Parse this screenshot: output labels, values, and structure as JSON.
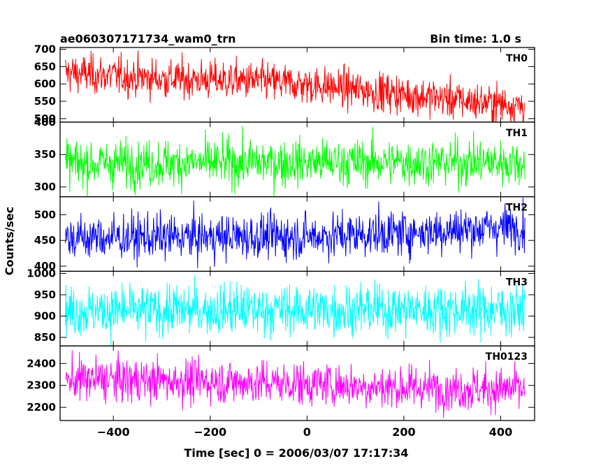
{
  "header": {
    "title": "ae060307171734_wam0_trn",
    "bin_time": "Bin time: 1.0 s"
  },
  "chart_data": {
    "type": "line",
    "title": "ae060307171734_wam0_trn",
    "xlabel": "Time [sec] 0 = 2006/03/07 17:17:34",
    "ylabel": "Counts/sec",
    "xlim": [
      -510,
      470
    ],
    "x_ticks": [
      -400,
      -200,
      0,
      200,
      400
    ],
    "x_range": [
      -499,
      450
    ],
    "bin_time_s": 1.0,
    "series": [
      {
        "name": "TH0",
        "color": "#ff0000",
        "ylim": [
          490,
          705
        ],
        "y_ticks": [
          500,
          550,
          600,
          650,
          700
        ],
        "trend": [
          [
            -499,
            632
          ],
          [
            -300,
            615
          ],
          [
            -100,
            608
          ],
          [
            0,
            598
          ],
          [
            200,
            570
          ],
          [
            350,
            548
          ],
          [
            450,
            538
          ]
        ],
        "noise": 28
      },
      {
        "name": "TH1",
        "color": "#00ff00",
        "ylim": [
          285,
          400
        ],
        "y_ticks": [
          300,
          350,
          400
        ],
        "trend": [
          [
            -499,
            336
          ],
          [
            0,
            338
          ],
          [
            450,
            338
          ]
        ],
        "noise": 18
      },
      {
        "name": "TH2",
        "color": "#0000ff",
        "ylim": [
          390,
          535
        ],
        "y_ticks": [
          400,
          450,
          500
        ],
        "trend": [
          [
            -499,
            455
          ],
          [
            0,
            458
          ],
          [
            200,
            465
          ],
          [
            450,
            478
          ]
        ],
        "noise": 22
      },
      {
        "name": "TH3",
        "color": "#00ffff",
        "ylim": [
          830,
          1005
        ],
        "y_ticks": [
          850,
          900,
          950,
          1000
        ],
        "trend": [
          [
            -499,
            912
          ],
          [
            0,
            915
          ],
          [
            450,
            915
          ]
        ],
        "noise": 30
      },
      {
        "name": "TH0123",
        "color": "#ff00ff",
        "ylim": [
          2140,
          2480
        ],
        "y_ticks": [
          2200,
          2300,
          2400
        ],
        "trend": [
          [
            -499,
            2328
          ],
          [
            -200,
            2318
          ],
          [
            0,
            2308
          ],
          [
            200,
            2290
          ],
          [
            450,
            2282
          ]
        ],
        "noise": 50
      }
    ]
  }
}
